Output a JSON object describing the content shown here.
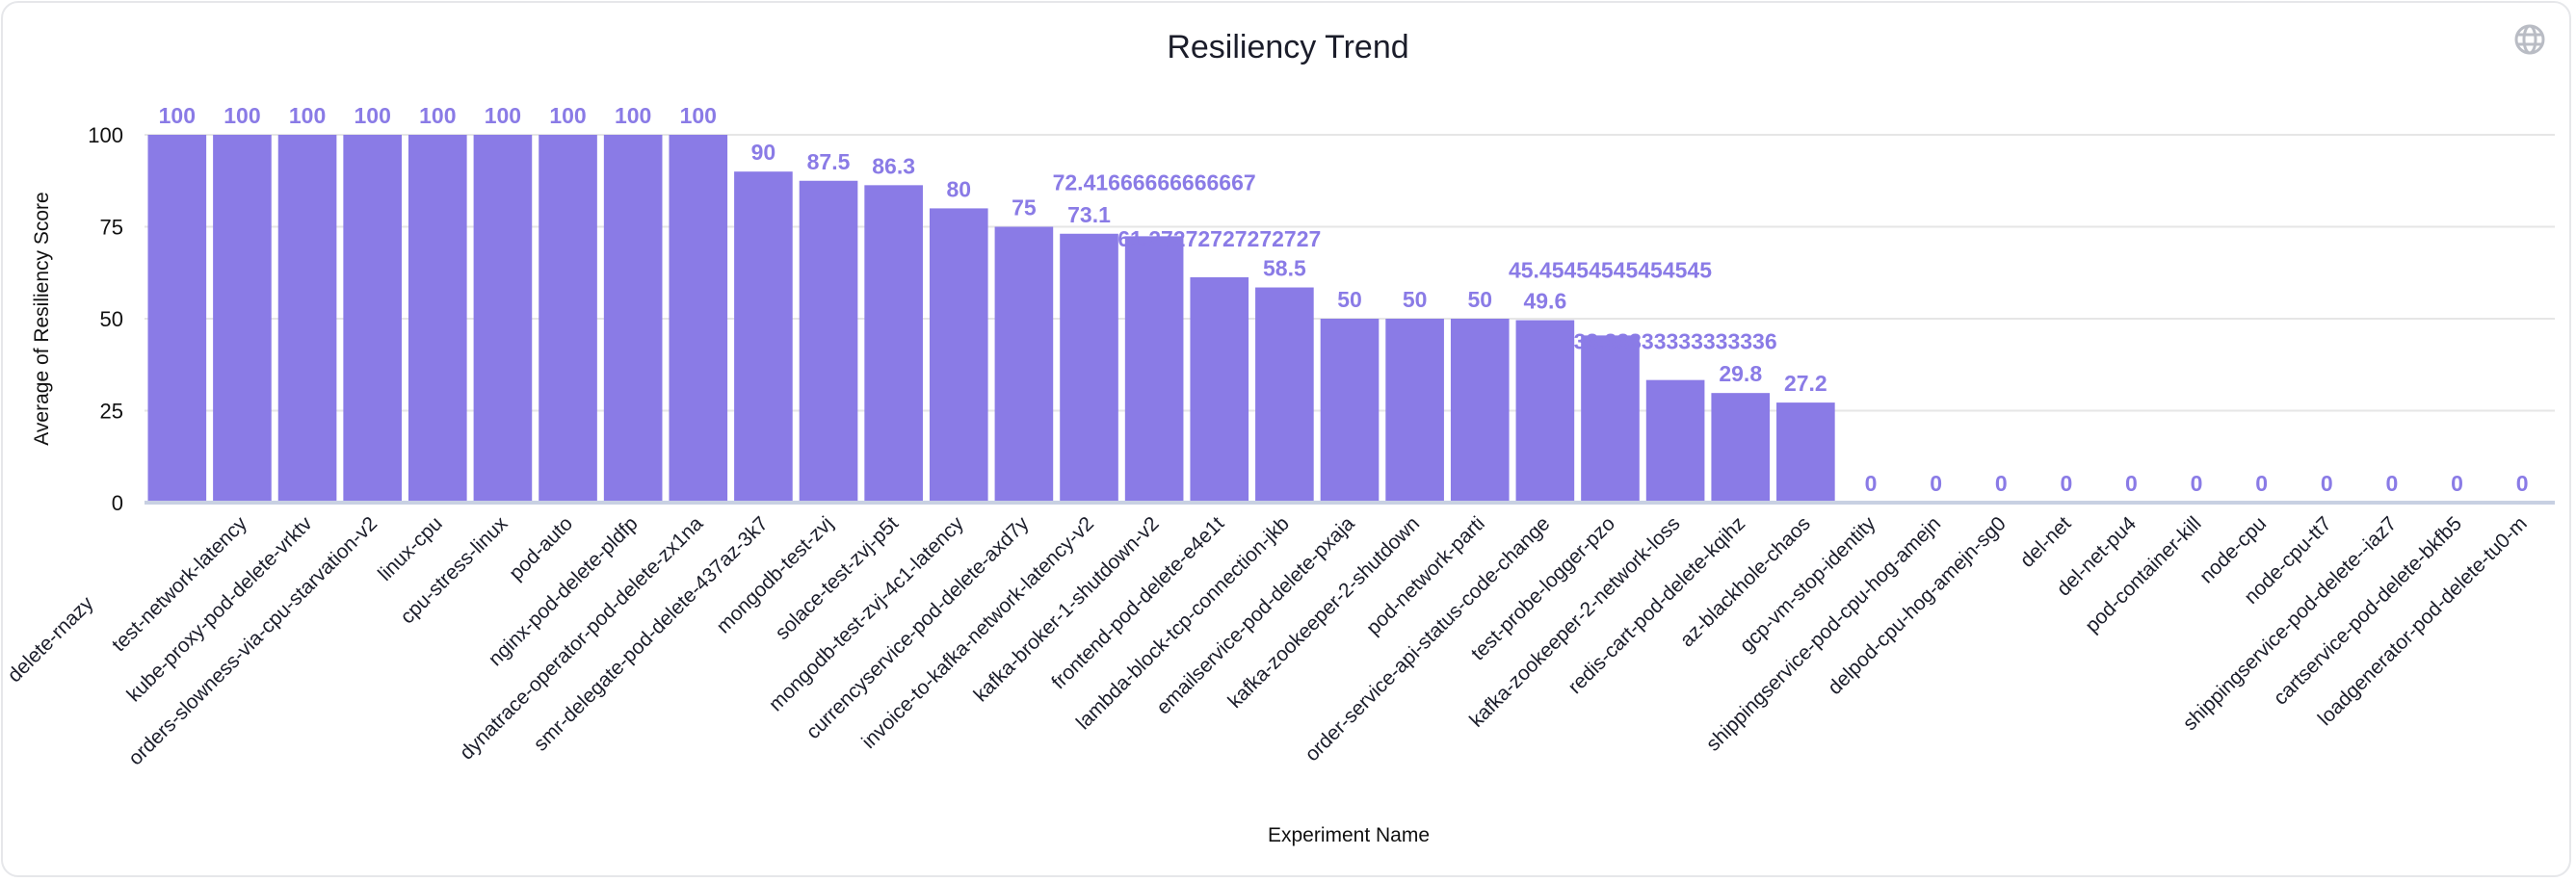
{
  "chart_data": {
    "type": "bar",
    "title": "Resiliency Trend",
    "xlabel": "Experiment Name",
    "ylabel": "Average of Resiliency Score",
    "ylim": [
      0,
      100
    ],
    "yticks": [
      0,
      25,
      50,
      75,
      100
    ],
    "grid": true,
    "bar_color": "#8a7be6",
    "categories": [
      "delete-rnazy",
      "test-network-latency",
      "kube-proxy-pod-delete-vrktv",
      "orders-slowness-via-cpu-starvation-v2",
      "linux-cpu",
      "cpu-stress-linux",
      "pod-auto",
      "nginx-pod-delete-pldfp",
      "dynatrace-operator-pod-delete-zx1na",
      "smr-delegate-pod-delete-437az-3k7",
      "mongodb-test-zvj",
      "solace-test-zvj-p5t",
      "mongodb-test-zvj-4c1-latency",
      "currencyservice-pod-delete-axd7y",
      "invoice-to-kafka-network-latency-v2",
      "kafka-broker-1-shutdown-v2",
      "frontend-pod-delete-e4e1t",
      "lambda-block-tcp-connection-jkb",
      "emailservice-pod-delete-pxaja",
      "kafka-zookeeper-2-shutdown",
      "pod-network-parti",
      "order-service-api-status-code-change",
      "test-probe-logger-pzo",
      "kafka-zookeeper-2-network-loss",
      "redis-cart-pod-delete-kqihz",
      "az-blackhole-chaos",
      "gcp-vm-stop-identity",
      "shippingservice-pod-cpu-hog-amejn",
      "delpod-cpu-hog-amejn-sg0",
      "del-net",
      "del-net-pu4",
      "pod-container-kill",
      "node-cpu",
      "node-cpu-tt7",
      "shippingservice-pod-delete--iaz7",
      "cartservice-pod-delete-bkfb5",
      "loadgenerator-pod-delete-tu0-m"
    ],
    "values": [
      100,
      100,
      100,
      100,
      100,
      100,
      100,
      100,
      100,
      90,
      87.5,
      86.3,
      80,
      75,
      73.1,
      72.41666666666667,
      61.27272727272727,
      58.5,
      50,
      50,
      50,
      49.6,
      45.45454545454545,
      33.33333333333336,
      29.8,
      27.2,
      0,
      0,
      0,
      0,
      0,
      0,
      0,
      0,
      0,
      0,
      0
    ],
    "value_labels": [
      "100",
      "100",
      "100",
      "100",
      "100",
      "100",
      "100",
      "100",
      "100",
      "90",
      "87.5",
      "86.3",
      "80",
      "75",
      "73.1",
      "72.41666666666667",
      "61.27272727272727",
      "58.5",
      "50",
      "50",
      "50",
      "49.6",
      "45.45454545454545",
      "33.33333333333336",
      "29.8",
      "27.2",
      "0",
      "0",
      "0",
      "0",
      "0",
      "0",
      "0",
      "0",
      "0",
      "0",
      "0"
    ]
  },
  "toolbar": {
    "globe_icon": "globe-icon"
  }
}
